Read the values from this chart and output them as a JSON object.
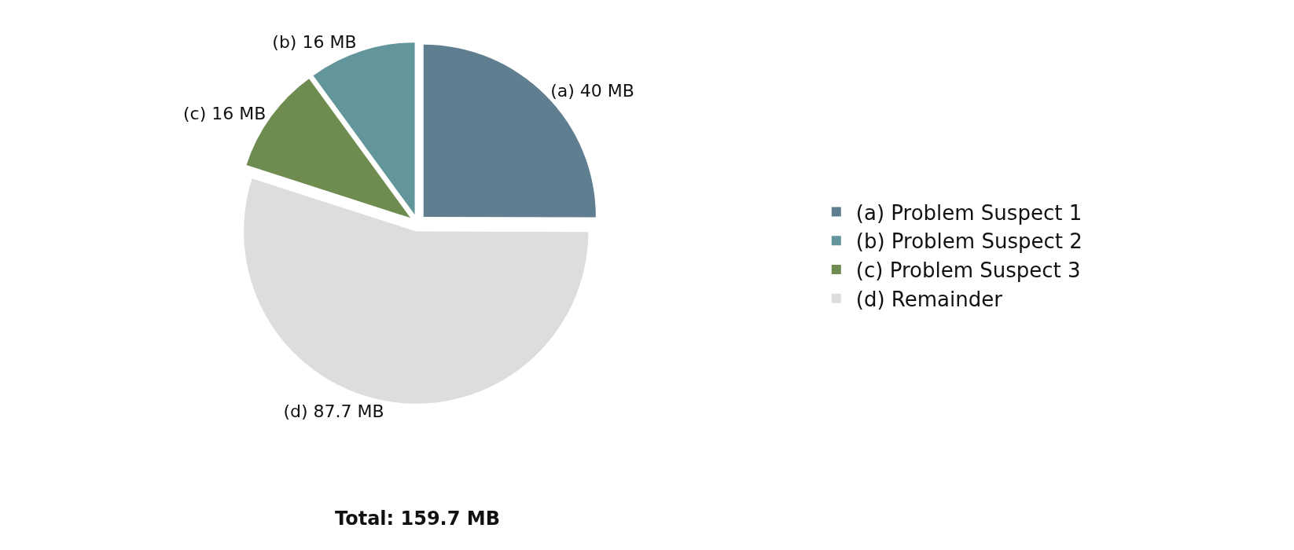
{
  "chart_data": {
    "type": "pie",
    "categories": [
      "(a) Problem Suspect 1",
      "(b) Problem Suspect 2",
      "(c) Problem Suspect 3",
      "(d) Remainder"
    ],
    "values": [
      40,
      16,
      16,
      87.7
    ],
    "colors": [
      "#5f7f91",
      "#62969a",
      "#6e8c50",
      "#dddddd"
    ],
    "value_labels": [
      "(a) 40 MB",
      "(b) 16 MB",
      "(c) 16 MB",
      "(d) 87.7 MB"
    ],
    "annotations": [
      "Total: 159.7 MB"
    ],
    "legend": "right"
  }
}
